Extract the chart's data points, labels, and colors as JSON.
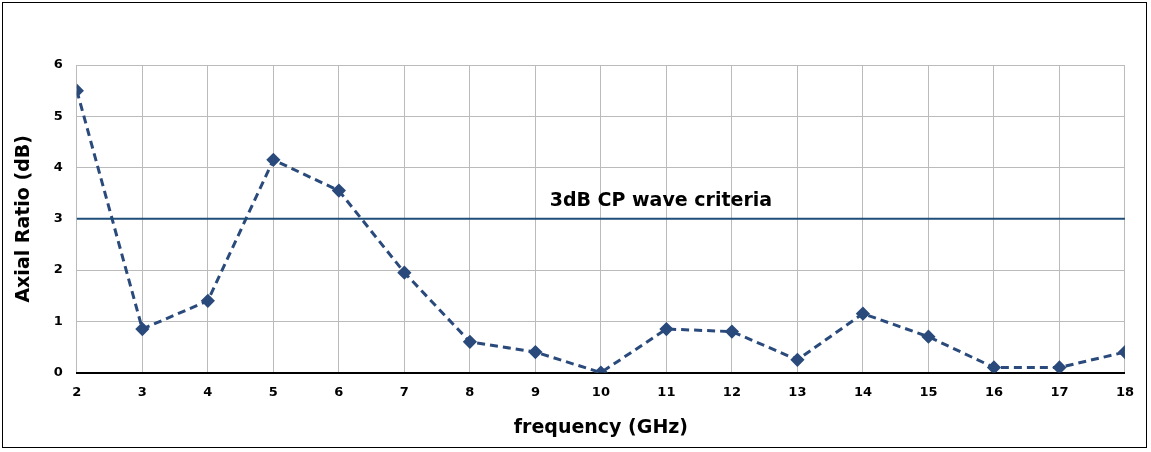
{
  "chart_data": {
    "type": "line",
    "xlabel": "frequency (GHz)",
    "ylabel": "Axial Ratio (dB)",
    "x": [
      2,
      3,
      4,
      5,
      6,
      7,
      8,
      9,
      10,
      11,
      12,
      13,
      14,
      15,
      16,
      17,
      18
    ],
    "series": [
      {
        "color": "#2a4a7c",
        "values": [
          5.5,
          0.85,
          1.4,
          4.15,
          3.55,
          1.95,
          0.6,
          0.4,
          0.0,
          0.85,
          0.8,
          0.25,
          1.15,
          0.7,
          0.1,
          0.1,
          0.4
        ]
      }
    ],
    "xlim": [
      2,
      18
    ],
    "xticks": [
      2,
      3,
      4,
      5,
      6,
      7,
      8,
      9,
      10,
      11,
      12,
      13,
      14,
      15,
      16,
      17,
      18
    ],
    "ylim": [
      0,
      6
    ],
    "yticks": [
      0,
      1,
      2,
      3,
      4,
      5,
      6
    ],
    "ref_lines": [
      {
        "axis": "y",
        "value": 3,
        "label": "3dB CP wave criteria",
        "color": "#1f4e79"
      }
    ],
    "grid": true,
    "legend": false,
    "marker": "diamond",
    "line_style": "dashed"
  }
}
